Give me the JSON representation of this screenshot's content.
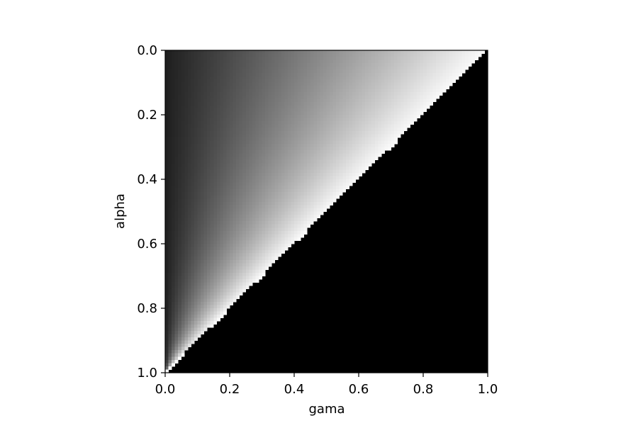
{
  "chart_data": {
    "type": "heatmap",
    "title": "",
    "xlabel": "gama",
    "ylabel": "alpha",
    "xlim": [
      0.0,
      1.0
    ],
    "ylim": [
      1.0,
      0.0
    ],
    "y_axis_inverted": true,
    "grid": false,
    "colormap": "gray",
    "resolution": 100,
    "masked_value_color": "#000000",
    "region_rule": "cells with gama < 1 - alpha are filled; cells below that diagonal are black",
    "value_rule": "gray level = gama / (1 - alpha), from 0 (black) at left edge to 1 (white) at the diagonal",
    "xticks": [
      0.0,
      0.2,
      0.4,
      0.6,
      0.8,
      1.0
    ],
    "xtick_labels": [
      "0.0",
      "0.2",
      "0.4",
      "0.6",
      "0.8",
      "1.0"
    ],
    "yticks": [
      0.0,
      0.2,
      0.4,
      0.6,
      0.8,
      1.0
    ],
    "ytick_labels": [
      "0.0",
      "0.2",
      "0.4",
      "0.6",
      "0.8",
      "1.0"
    ]
  }
}
